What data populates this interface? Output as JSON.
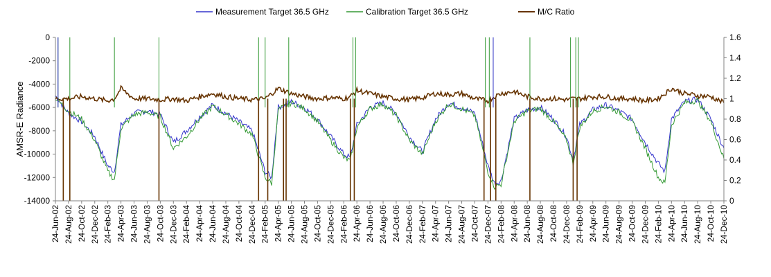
{
  "chart_data": {
    "type": "line",
    "title": "",
    "xlabel": "",
    "ylabel_left": "AMSR-E Radiance",
    "ylabel_right": "",
    "ylim_left": [
      -14000,
      0
    ],
    "ylim_right": [
      0,
      1.6
    ],
    "yticks_left": [
      "0",
      "-2000",
      "-4000",
      "-6000",
      "-8000",
      "-10000",
      "-12000",
      "-14000"
    ],
    "yticks_right": [
      "1.6",
      "1.4",
      "1.2",
      "1",
      "0.8",
      "0.6",
      "0.4",
      "0.2",
      "0"
    ],
    "grid": false,
    "legend_position": "top",
    "x_labels": [
      "24-Jun-02",
      "24-Aug-02",
      "24-Oct-02",
      "24-Dec-02",
      "24-Feb-03",
      "24-Apr-03",
      "24-Jun-03",
      "24-Aug-03",
      "24-Oct-03",
      "24-Dec-03",
      "24-Feb-04",
      "24-Apr-04",
      "24-Jun-04",
      "24-Aug-04",
      "24-Oct-04",
      "24-Dec-04",
      "24-Feb-05",
      "24-Apr-05",
      "24-Jun-05",
      "24-Aug-05",
      "24-Oct-05",
      "24-Dec-05",
      "24-Feb-06",
      "24-Apr-06",
      "24-Jun-06",
      "24-Aug-06",
      "24-Oct-06",
      "24-Dec-06",
      "24-Feb-07",
      "24-Apr-07",
      "24-Jun-07",
      "24-Aug-07",
      "24-Oct-07",
      "24-Dec-07",
      "24-Feb-08",
      "24-Apr-08",
      "24-Jun-08",
      "24-Aug-08",
      "24-Oct-08",
      "24-Dec-08",
      "24-Feb-09",
      "24-Apr-09",
      "24-Jun-09",
      "24-Aug-09",
      "24-Oct-09",
      "24-Dec-09",
      "24-Feb-10",
      "24-Apr-10",
      "24-Jun-10",
      "24-Aug-10",
      "24-Oct-10",
      "24-Dec-10"
    ],
    "series": [
      {
        "name": "Measurement Target 36.5 GHz",
        "axis": "left",
        "color": "#3333cc",
        "points": [
          [
            0,
            -5000
          ],
          [
            1,
            -6500
          ],
          [
            2,
            -7200
          ],
          [
            3,
            -8500
          ],
          [
            4,
            -11000
          ],
          [
            4.5,
            -11500
          ],
          [
            5,
            -7500
          ],
          [
            6,
            -6500
          ],
          [
            7,
            -6300
          ],
          [
            8,
            -6600
          ],
          [
            9,
            -9000
          ],
          [
            10,
            -8000
          ],
          [
            11,
            -6800
          ],
          [
            12,
            -5800
          ],
          [
            13,
            -6500
          ],
          [
            14,
            -7200
          ],
          [
            15,
            -8000
          ],
          [
            16,
            -11500
          ],
          [
            16.5,
            -12000
          ],
          [
            17,
            -6000
          ],
          [
            18,
            -5500
          ],
          [
            19,
            -6000
          ],
          [
            20,
            -7000
          ],
          [
            21,
            -8500
          ],
          [
            22,
            -10000
          ],
          [
            22.5,
            -10300
          ],
          [
            23,
            -7500
          ],
          [
            24,
            -6000
          ],
          [
            25,
            -5600
          ],
          [
            26,
            -6500
          ],
          [
            27,
            -8500
          ],
          [
            28,
            -9800
          ],
          [
            29,
            -7000
          ],
          [
            30,
            -5600
          ],
          [
            31,
            -6000
          ],
          [
            32,
            -6500
          ],
          [
            33,
            -11000
          ],
          [
            33.5,
            -12500
          ],
          [
            34,
            -12300
          ],
          [
            35,
            -7000
          ],
          [
            36,
            -6200
          ],
          [
            37,
            -6000
          ],
          [
            38,
            -7000
          ],
          [
            39,
            -8500
          ],
          [
            39.5,
            -10500
          ],
          [
            40,
            -7500
          ],
          [
            41,
            -6200
          ],
          [
            42,
            -5800
          ],
          [
            43,
            -6300
          ],
          [
            44,
            -7000
          ],
          [
            45,
            -9000
          ],
          [
            46,
            -10800
          ],
          [
            46.5,
            -11500
          ],
          [
            47,
            -7000
          ],
          [
            48,
            -5500
          ],
          [
            49,
            -5300
          ],
          [
            50,
            -7000
          ],
          [
            51,
            -9500
          ]
        ]
      },
      {
        "name": "Calibration Target 36.5 GHz",
        "axis": "left",
        "color": "#339933",
        "points": [
          [
            0,
            -5200
          ],
          [
            1,
            -6300
          ],
          [
            2,
            -7000
          ],
          [
            3,
            -8800
          ],
          [
            4,
            -11500
          ],
          [
            4.5,
            -12200
          ],
          [
            5,
            -7800
          ],
          [
            6,
            -6600
          ],
          [
            7,
            -6400
          ],
          [
            8,
            -6800
          ],
          [
            9,
            -9500
          ],
          [
            10,
            -8500
          ],
          [
            11,
            -7000
          ],
          [
            12,
            -5900
          ],
          [
            13,
            -6600
          ],
          [
            14,
            -7400
          ],
          [
            15,
            -8300
          ],
          [
            16,
            -12000
          ],
          [
            16.5,
            -12500
          ],
          [
            17,
            -6200
          ],
          [
            18,
            -5600
          ],
          [
            19,
            -6100
          ],
          [
            20,
            -7200
          ],
          [
            21,
            -8800
          ],
          [
            22,
            -10300
          ],
          [
            22.5,
            -10600
          ],
          [
            23,
            -7700
          ],
          [
            24,
            -6100
          ],
          [
            25,
            -5700
          ],
          [
            26,
            -6700
          ],
          [
            27,
            -8800
          ],
          [
            28,
            -10000
          ],
          [
            29,
            -7200
          ],
          [
            30,
            -5700
          ],
          [
            31,
            -6100
          ],
          [
            32,
            -6700
          ],
          [
            33,
            -11500
          ],
          [
            33.5,
            -12800
          ],
          [
            34,
            -12600
          ],
          [
            35,
            -7200
          ],
          [
            36,
            -6300
          ],
          [
            37,
            -6100
          ],
          [
            38,
            -7200
          ],
          [
            39,
            -8800
          ],
          [
            39.5,
            -10800
          ],
          [
            40,
            -7700
          ],
          [
            41,
            -6300
          ],
          [
            42,
            -5900
          ],
          [
            43,
            -6400
          ],
          [
            44,
            -7200
          ],
          [
            45,
            -9500
          ],
          [
            46,
            -12000
          ],
          [
            46.5,
            -12500
          ],
          [
            47,
            -7500
          ],
          [
            48,
            -5600
          ],
          [
            49,
            -5400
          ],
          [
            50,
            -7200
          ],
          [
            51,
            -10400
          ]
        ]
      },
      {
        "name": "M/C Ratio",
        "axis": "right",
        "color": "#663300",
        "points": [
          [
            0,
            1.0
          ],
          [
            1,
            1.0
          ],
          [
            2,
            1.02
          ],
          [
            3,
            1.0
          ],
          [
            4,
            0.98
          ],
          [
            4.5,
            1.0
          ],
          [
            5,
            1.1
          ],
          [
            6,
            1.0
          ],
          [
            7,
            1.0
          ],
          [
            8,
            0.99
          ],
          [
            9,
            1.0
          ],
          [
            10,
            0.98
          ],
          [
            11,
            1.02
          ],
          [
            12,
            1.05
          ],
          [
            13,
            1.02
          ],
          [
            14,
            1.0
          ],
          [
            15,
            0.99
          ],
          [
            16,
            1.0
          ],
          [
            16.5,
            1.05
          ],
          [
            17,
            1.1
          ],
          [
            18,
            1.05
          ],
          [
            19,
            1.02
          ],
          [
            20,
            1.0
          ],
          [
            21,
            1.01
          ],
          [
            22,
            1.0
          ],
          [
            22.5,
            1.02
          ],
          [
            23,
            1.08
          ],
          [
            24,
            1.05
          ],
          [
            25,
            1.02
          ],
          [
            26,
            1.0
          ],
          [
            27,
            0.99
          ],
          [
            28,
            1.01
          ],
          [
            29,
            1.05
          ],
          [
            30,
            1.04
          ],
          [
            31,
            1.05
          ],
          [
            32,
            1.0
          ],
          [
            33,
            0.98
          ],
          [
            33.5,
            1.02
          ],
          [
            34,
            1.05
          ],
          [
            35,
            1.07
          ],
          [
            36,
            1.02
          ],
          [
            37,
            1.0
          ],
          [
            38,
            1.0
          ],
          [
            39,
            0.99
          ],
          [
            39.5,
            1.0
          ],
          [
            40,
            1.0
          ],
          [
            41,
            1.02
          ],
          [
            42,
            1.02
          ],
          [
            43,
            1.0
          ],
          [
            44,
            1.0
          ],
          [
            45,
            0.98
          ],
          [
            46,
            1.0
          ],
          [
            46.5,
            1.05
          ],
          [
            47,
            1.1
          ],
          [
            48,
            1.05
          ],
          [
            49,
            1.03
          ],
          [
            50,
            1.02
          ],
          [
            51,
            0.96
          ]
        ]
      }
    ],
    "spikes": [
      {
        "series": "Calibration Target 36.5 GHz",
        "x": [
          0.2,
          1.1,
          4.5,
          7.9,
          15.5,
          16.0,
          17.8,
          22.7,
          22.9,
          32.8,
          33.1,
          33.4,
          36.2,
          39.3,
          39.7,
          39.9
        ]
      },
      {
        "series": "Measurement Target 36.5 GHz",
        "x": [
          0.2,
          33.4
        ]
      },
      {
        "series": "M/C Ratio",
        "x": [
          0.6,
          1.1,
          7.9,
          15.5,
          16.2,
          17.4,
          17.6,
          22.5,
          22.8,
          32.7,
          33.2,
          33.6,
          36.2,
          39.5,
          39.8
        ]
      }
    ]
  }
}
